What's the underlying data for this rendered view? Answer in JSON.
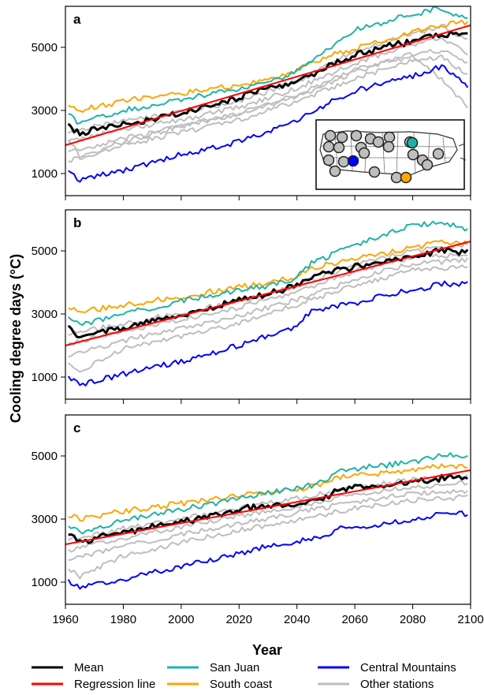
{
  "figure": {
    "ylabel": "Cooling degree days (°C)",
    "xlabel": "Year"
  },
  "colors": {
    "mean": "#000000",
    "regression": "#ff0000",
    "san_juan": "#20b2aa",
    "south_coast": "#ffa500",
    "central_mountains": "#0000ff",
    "other": "#bebebe"
  },
  "legend": [
    {
      "label": "Mean",
      "color": "#000000"
    },
    {
      "label": "San Juan",
      "color": "#20b2aa"
    },
    {
      "label": "Central Mountains",
      "color": "#0000ff"
    },
    {
      "label": "Regression line",
      "color": "#ff0000"
    },
    {
      "label": "South coast",
      "color": "#ffa500"
    },
    {
      "label": "Other stations",
      "color": "#bebebe"
    }
  ],
  "chart_data": [
    {
      "type": "line",
      "panel": "a",
      "xlim": [
        1960,
        2100
      ],
      "ylim": [
        300,
        6300
      ],
      "xticks": [
        1960,
        1980,
        2000,
        2020,
        2040,
        2060,
        2080,
        2100
      ],
      "yticks": [
        1000,
        3000,
        5000
      ],
      "series": [
        {
          "name": "San Juan",
          "key": "san_juan",
          "x": [
            1961,
            1965,
            1980,
            2000,
            2020,
            2030,
            2040,
            2050,
            2060,
            2070,
            2080,
            2090,
            2099
          ],
          "y": [
            2850,
            2600,
            3000,
            3350,
            3700,
            3850,
            4250,
            4900,
            5550,
            5800,
            6050,
            6250,
            5850
          ]
        },
        {
          "name": "South coast",
          "key": "south_coast",
          "x": [
            1961,
            1965,
            1980,
            2000,
            2020,
            2030,
            2040,
            2050,
            2060,
            2070,
            2080,
            2090,
            2099
          ],
          "y": [
            3200,
            3000,
            3300,
            3550,
            3800,
            4000,
            4300,
            4700,
            4950,
            5200,
            5500,
            5700,
            5800
          ]
        },
        {
          "name": "Mean",
          "key": "mean",
          "x": [
            1961,
            1965,
            1970,
            1980,
            1990,
            2000,
            2010,
            2020,
            2030,
            2040,
            2050,
            2060,
            2070,
            2080,
            2090,
            2099
          ],
          "y": [
            2550,
            2250,
            2400,
            2550,
            2700,
            2900,
            3150,
            3400,
            3700,
            3900,
            4350,
            4750,
            5000,
            5200,
            5400,
            5500
          ]
        },
        {
          "name": "Central Mountains",
          "key": "central_mountains",
          "x": [
            1961,
            1965,
            1980,
            2000,
            2020,
            2030,
            2040,
            2050,
            2060,
            2070,
            2080,
            2090,
            2099
          ],
          "y": [
            1100,
            800,
            1100,
            1600,
            2000,
            2300,
            2700,
            3200,
            3600,
            3900,
            4100,
            4400,
            3800
          ]
        },
        {
          "name": "Regression line",
          "key": "regression",
          "x": [
            1960,
            2100
          ],
          "y": [
            1900,
            5700
          ]
        }
      ],
      "other_stations": [
        {
          "key": "other",
          "x": [
            1961,
            1980,
            2000,
            2020,
            2040,
            2060,
            2080,
            2090,
            2099
          ],
          "y": [
            2350,
            2650,
            2950,
            3300,
            3900,
            4900,
            5400,
            5700,
            5200
          ]
        },
        {
          "key": "other",
          "x": [
            1961,
            1980,
            2000,
            2020,
            2040,
            2060,
            2080,
            2090,
            2099
          ],
          "y": [
            2000,
            2400,
            2700,
            3100,
            3700,
            4500,
            5100,
            5300,
            4800
          ]
        },
        {
          "key": "other",
          "x": [
            1961,
            1980,
            2000,
            2020,
            2040,
            2060,
            2080,
            2090,
            2099
          ],
          "y": [
            1650,
            2100,
            2500,
            2900,
            3450,
            4200,
            4800,
            4900,
            4500
          ]
        },
        {
          "key": "other",
          "x": [
            1961,
            1980,
            2000,
            2020,
            2040,
            2060,
            2080,
            2090,
            2099
          ],
          "y": [
            1400,
            1900,
            2300,
            2700,
            3300,
            4000,
            4600,
            4700,
            4100
          ]
        },
        {
          "key": "other",
          "x": [
            1961,
            1965,
            1980,
            2000,
            2020,
            2040,
            2060,
            2080,
            2090,
            2099
          ],
          "y": [
            2150,
            1500,
            2000,
            2500,
            2900,
            3500,
            4300,
            4700,
            4000,
            3100
          ]
        }
      ],
      "inset": true
    },
    {
      "type": "line",
      "panel": "b",
      "xlim": [
        1960,
        2100
      ],
      "ylim": [
        300,
        6300
      ],
      "xticks": [
        1960,
        1980,
        2000,
        2020,
        2040,
        2060,
        2080,
        2100
      ],
      "yticks": [
        1000,
        3000,
        5000
      ],
      "series": [
        {
          "name": "San Juan",
          "key": "san_juan",
          "x": [
            1961,
            1965,
            1980,
            2000,
            2020,
            2030,
            2040,
            2045,
            2060,
            2070,
            2080,
            2090,
            2099
          ],
          "y": [
            2900,
            2650,
            3000,
            3400,
            3750,
            3900,
            4150,
            4600,
            5200,
            5500,
            5800,
            5900,
            5700
          ]
        },
        {
          "name": "South coast",
          "key": "south_coast",
          "x": [
            1961,
            1965,
            1980,
            2000,
            2020,
            2030,
            2040,
            2045,
            2060,
            2070,
            2080,
            2090,
            2099
          ],
          "y": [
            3200,
            3050,
            3300,
            3550,
            3850,
            4000,
            4200,
            4450,
            4750,
            4900,
            5100,
            5300,
            5250
          ]
        },
        {
          "name": "Mean",
          "key": "mean",
          "x": [
            1961,
            1965,
            1970,
            1980,
            1990,
            2000,
            2010,
            2020,
            2030,
            2040,
            2045,
            2060,
            2070,
            2080,
            2090,
            2099
          ],
          "y": [
            2550,
            2250,
            2400,
            2550,
            2750,
            2950,
            3200,
            3450,
            3650,
            3900,
            4200,
            4500,
            4700,
            4850,
            5000,
            4950
          ]
        },
        {
          "name": "Central Mountains",
          "key": "central_mountains",
          "x": [
            1961,
            1965,
            1980,
            2000,
            2020,
            2030,
            2040,
            2045,
            2060,
            2070,
            2080,
            2090,
            2099
          ],
          "y": [
            1050,
            750,
            1100,
            1500,
            2000,
            2300,
            2600,
            3100,
            3350,
            3600,
            3750,
            3950,
            3950
          ]
        },
        {
          "name": "Regression line",
          "key": "regression",
          "x": [
            1960,
            2100
          ],
          "y": [
            2000,
            5300
          ]
        }
      ],
      "other_stations": [
        {
          "key": "other",
          "x": [
            1961,
            1980,
            2000,
            2020,
            2040,
            2060,
            2080,
            2099
          ],
          "y": [
            2350,
            2700,
            3050,
            3400,
            3900,
            4550,
            5000,
            5200
          ]
        },
        {
          "key": "other",
          "x": [
            1961,
            1980,
            2000,
            2020,
            2040,
            2060,
            2080,
            2099
          ],
          "y": [
            2050,
            2450,
            2800,
            3200,
            3700,
            4350,
            4800,
            4900
          ]
        },
        {
          "key": "other",
          "x": [
            1961,
            1980,
            2000,
            2020,
            2040,
            2060,
            2080,
            2099
          ],
          "y": [
            1700,
            2150,
            2550,
            2950,
            3450,
            4100,
            4600,
            4700
          ]
        },
        {
          "key": "other",
          "x": [
            1961,
            1965,
            1980,
            2000,
            2020,
            2040,
            2060,
            2080,
            2099
          ],
          "y": [
            1500,
            1200,
            1900,
            2300,
            2700,
            3300,
            3900,
            4400,
            4500
          ]
        }
      ]
    },
    {
      "type": "line",
      "panel": "c",
      "xlim": [
        1960,
        2100
      ],
      "ylim": [
        300,
        6300
      ],
      "xticks": [
        1960,
        1980,
        2000,
        2020,
        2040,
        2060,
        2080,
        2100
      ],
      "yticks": [
        1000,
        3000,
        5000
      ],
      "series": [
        {
          "name": "San Juan",
          "key": "san_juan",
          "x": [
            1961,
            1965,
            1980,
            2000,
            2020,
            2030,
            2040,
            2050,
            2055,
            2070,
            2080,
            2090,
            2099
          ],
          "y": [
            2850,
            2600,
            2950,
            3300,
            3650,
            3850,
            3950,
            4200,
            4550,
            4700,
            4800,
            5050,
            4950
          ]
        },
        {
          "name": "South coast",
          "key": "south_coast",
          "x": [
            1961,
            1965,
            1980,
            2000,
            2020,
            2030,
            2040,
            2050,
            2055,
            2070,
            2080,
            2090,
            2099
          ],
          "y": [
            3150,
            3000,
            3250,
            3500,
            3750,
            3850,
            3950,
            4150,
            4350,
            4450,
            4550,
            4700,
            4650
          ]
        },
        {
          "name": "Mean",
          "key": "mean",
          "x": [
            1961,
            1965,
            1970,
            1980,
            1990,
            2000,
            2010,
            2020,
            2030,
            2040,
            2050,
            2055,
            2070,
            2080,
            2090,
            2099
          ],
          "y": [
            2550,
            2250,
            2400,
            2550,
            2750,
            2900,
            3100,
            3300,
            3450,
            3500,
            3700,
            3950,
            4050,
            4150,
            4300,
            4350
          ]
        },
        {
          "name": "Central Mountains",
          "key": "central_mountains",
          "x": [
            1961,
            1965,
            1980,
            2000,
            2020,
            2030,
            2040,
            2050,
            2055,
            2070,
            2080,
            2090,
            2099
          ],
          "y": [
            1050,
            800,
            1100,
            1500,
            1900,
            2150,
            2300,
            2500,
            2700,
            2850,
            2950,
            3200,
            3150
          ]
        },
        {
          "name": "Regression line",
          "key": "regression",
          "x": [
            1960,
            2100
          ],
          "y": [
            2200,
            4550
          ]
        }
      ],
      "other_stations": [
        {
          "key": "other",
          "x": [
            1961,
            1980,
            2000,
            2020,
            2040,
            2060,
            2080,
            2099
          ],
          "y": [
            2350,
            2700,
            3000,
            3350,
            3650,
            4000,
            4250,
            4400
          ]
        },
        {
          "key": "other",
          "x": [
            1961,
            1980,
            2000,
            2020,
            2040,
            2060,
            2080,
            2099
          ],
          "y": [
            2000,
            2400,
            2750,
            3100,
            3400,
            3800,
            4000,
            4150
          ]
        },
        {
          "key": "other",
          "x": [
            1961,
            1980,
            2000,
            2020,
            2040,
            2060,
            2080,
            2099
          ],
          "y": [
            1700,
            2150,
            2500,
            2850,
            3200,
            3550,
            3800,
            3900
          ]
        },
        {
          "key": "other",
          "x": [
            1961,
            1965,
            1980,
            2000,
            2020,
            2040,
            2060,
            2080,
            2099
          ],
          "y": [
            1450,
            1150,
            1850,
            2250,
            2650,
            2950,
            3350,
            3600,
            3700
          ]
        }
      ]
    }
  ]
}
